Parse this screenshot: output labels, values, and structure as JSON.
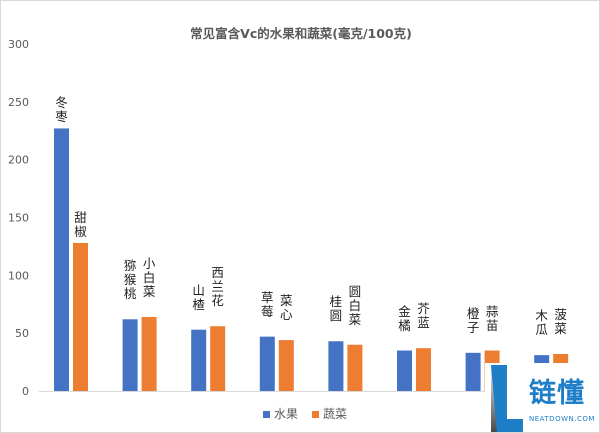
{
  "chart_data": {
    "type": "bar",
    "title": "常见富含Vc的水果和蔬菜(毫克/100克)",
    "ylim": [
      0,
      300
    ],
    "yticks": [
      "0",
      "50",
      "100",
      "150",
      "200",
      "250",
      "300"
    ],
    "grid": false,
    "legend_position": "bottom",
    "series": [
      {
        "name": "水果",
        "color": "#4472C4",
        "labels": [
          "冬枣",
          "猕猴桃",
          "山楂",
          "草莓",
          "桂圆",
          "金橘",
          "橙子",
          "木瓜"
        ],
        "values": [
          227,
          62,
          53,
          47,
          43,
          35,
          33,
          31
        ]
      },
      {
        "name": "蔬菜",
        "color": "#ED7D31",
        "labels": [
          "甜椒",
          "小白菜",
          "西兰花",
          "菜心",
          "圆白菜",
          "芥蓝",
          "蒜苗",
          "菠菜"
        ],
        "values": [
          128,
          64,
          56,
          44,
          40,
          37,
          35,
          32
        ]
      }
    ]
  },
  "watermark": {
    "logo_text": "链懂",
    "logo_subtext": "NEATDOWN.COM"
  }
}
